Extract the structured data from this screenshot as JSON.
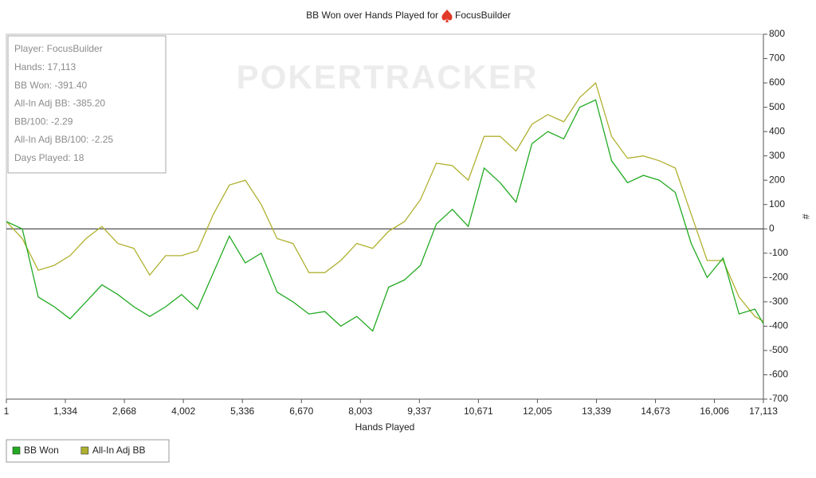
{
  "chart_data": {
    "type": "line",
    "title": "BB Won over Hands Played for",
    "title_player": "FocusBuilder",
    "watermark": "POKERTRACKER",
    "x_label": "Hands Played",
    "y_label": "#",
    "stats": [
      "Player: FocusBuilder",
      "Hands: 17,113",
      "BB Won: -391.40",
      "All-In Adj BB: -385.20",
      "BB/100: -2.29",
      "All-In Adj BB/100: -2.25",
      "Days Played: 18"
    ],
    "x": [
      1,
      361,
      721,
      1081,
      1441,
      1801,
      2161,
      2521,
      2881,
      3241,
      3601,
      3961,
      4321,
      4681,
      5041,
      5401,
      5761,
      6121,
      6481,
      6841,
      7201,
      7561,
      7921,
      8281,
      8641,
      9001,
      9361,
      9721,
      10081,
      10441,
      10801,
      11161,
      11521,
      11881,
      12241,
      12601,
      12961,
      13321,
      13681,
      14041,
      14401,
      14761,
      15121,
      15481,
      15841,
      16201,
      16561,
      16921,
      17113
    ],
    "series": [
      {
        "name": "BB Won",
        "color": "#22aa22",
        "values": [
          30,
          0,
          -280,
          -320,
          -370,
          -300,
          -230,
          -270,
          -320,
          -360,
          -320,
          -270,
          -330,
          -180,
          -30,
          -140,
          -100,
          -260,
          -300,
          -350,
          -340,
          -400,
          -360,
          -420,
          -240,
          -210,
          -150,
          20,
          80,
          10,
          250,
          190,
          110,
          350,
          400,
          370,
          500,
          530,
          280,
          190,
          220,
          200,
          150,
          -60,
          -200,
          -120,
          -350,
          -330,
          -390
        ]
      },
      {
        "name": "All-In Adj BB",
        "color": "#b0b030",
        "values": [
          30,
          -40,
          -170,
          -150,
          -110,
          -40,
          10,
          -60,
          -80,
          -190,
          -110,
          -110,
          -90,
          60,
          180,
          200,
          100,
          -40,
          -60,
          -180,
          -180,
          -130,
          -60,
          -80,
          -10,
          30,
          120,
          270,
          260,
          200,
          380,
          380,
          320,
          430,
          470,
          440,
          540,
          600,
          380,
          290,
          300,
          280,
          250,
          60,
          -130,
          -130,
          -280,
          -360,
          -380
        ]
      }
    ],
    "xlim": [
      1,
      17113
    ],
    "xticks": [
      1,
      {
        "value": 1334,
        "label": "1,334"
      },
      {
        "value": 2668,
        "label": "2,668"
      },
      {
        "value": 4002,
        "label": "4,002"
      },
      {
        "value": 5336,
        "label": "5,336"
      },
      {
        "value": 6670,
        "label": "6,670"
      },
      {
        "value": 8003,
        "label": "8,003"
      },
      {
        "value": 9337,
        "label": "9,337"
      },
      {
        "value": 10671,
        "label": "10,671"
      },
      {
        "value": 12005,
        "label": "12,005"
      },
      {
        "value": 13339,
        "label": "13,339"
      },
      {
        "value": 14673,
        "label": "14,673"
      },
      {
        "value": 16006,
        "label": "16,006"
      },
      {
        "value": 17113,
        "label": "17,113"
      }
    ],
    "ylim": [
      -700,
      800
    ],
    "yticks": [
      800,
      700,
      600,
      500,
      400,
      300,
      200,
      100,
      0,
      -100,
      -200,
      -300,
      -400,
      -500,
      -600,
      -700
    ],
    "zero_line": true,
    "legend": "bottom-left"
  }
}
